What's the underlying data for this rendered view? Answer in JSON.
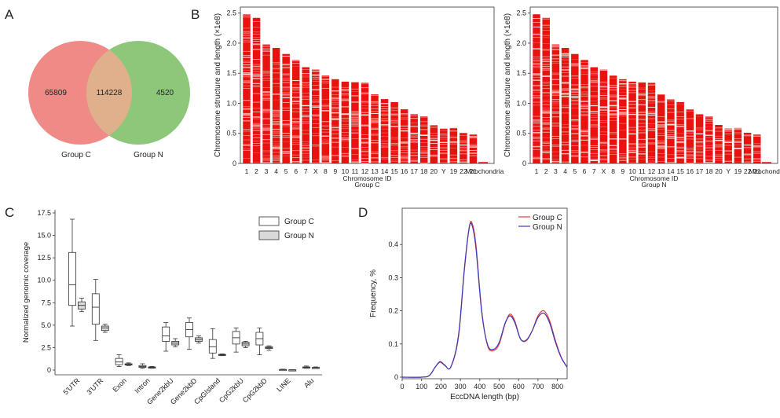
{
  "panels": {
    "A": {
      "letter": "A"
    },
    "B": {
      "letter": "B"
    },
    "C": {
      "letter": "C"
    },
    "D": {
      "letter": "D"
    }
  },
  "colors": {
    "groupC_venn": "#f08a86",
    "groupN_venn": "#8cc77a",
    "overlap_venn": "#dfb08b",
    "chromosome_red": "#e8130e",
    "line_groupC": "#e83a3a",
    "line_groupN": "#3a3ab8",
    "box_groupN_fill": "#d9d9d9"
  },
  "chart_data": [
    {
      "type": "venn",
      "panel": "A",
      "sets": [
        {
          "name": "Group C",
          "only": "65809"
        },
        {
          "name": "Group N",
          "only": "4520"
        }
      ],
      "intersection": "114228"
    },
    {
      "type": "bar",
      "panel": "B",
      "subtitle": "Group C",
      "ylabel": "Chromosome structure and length (×1e8)",
      "xlabel": "Chromosome ID",
      "ylim": [
        0,
        2.6
      ],
      "yticks": [
        "0",
        "0.5",
        "1.0",
        "1.5",
        "2.0",
        "2.5"
      ],
      "categories": [
        "1",
        "2",
        "3",
        "4",
        "5",
        "6",
        "7",
        "X",
        "8",
        "9",
        "10",
        "11",
        "12",
        "13",
        "14",
        "15",
        "16",
        "17",
        "18",
        "20",
        "Y",
        "19",
        "22",
        "21",
        "Mitochondria"
      ],
      "values": [
        2.48,
        2.42,
        1.98,
        1.92,
        1.82,
        1.72,
        1.6,
        1.56,
        1.46,
        1.4,
        1.36,
        1.35,
        1.34,
        1.15,
        1.07,
        1.02,
        0.9,
        0.82,
        0.78,
        0.64,
        0.58,
        0.59,
        0.51,
        0.48,
        0.02
      ]
    },
    {
      "type": "bar",
      "panel": "B",
      "subtitle": "Group N",
      "ylabel": "Chromosome structure and length (×1e8)",
      "xlabel": "Chromosome ID",
      "ylim": [
        0,
        2.6
      ],
      "yticks": [
        "0",
        "0.5",
        "1.0",
        "1.5",
        "2.0",
        "2.5"
      ],
      "categories": [
        "1",
        "2",
        "3",
        "4",
        "5",
        "6",
        "7",
        "X",
        "8",
        "9",
        "10",
        "11",
        "12",
        "13",
        "14",
        "15",
        "16",
        "17",
        "18",
        "20",
        "Y",
        "19",
        "22",
        "21",
        "Mitochondria"
      ],
      "values": [
        2.48,
        2.42,
        1.98,
        1.92,
        1.82,
        1.72,
        1.6,
        1.56,
        1.46,
        1.4,
        1.36,
        1.35,
        1.34,
        1.15,
        1.07,
        1.02,
        0.9,
        0.82,
        0.78,
        0.64,
        0.58,
        0.59,
        0.51,
        0.48,
        0.02
      ]
    },
    {
      "type": "boxplot",
      "panel": "C",
      "ylabel": "Normalized genomic coverage",
      "ylim": [
        0,
        17.5
      ],
      "yticks": [
        "0",
        "2.5",
        "5.0",
        "7.5",
        "10.0",
        "12.5",
        "15.0",
        "17.5"
      ],
      "categories": [
        "5'UTR",
        "3'UTR",
        "Exon",
        "Intron",
        "Gene2kbU",
        "Gene2kbD",
        "CpGIsland",
        "CpG2kbU",
        "CpG2kbD",
        "LINE",
        "Alu"
      ],
      "legend": [
        "Group C",
        "Group N"
      ],
      "series": [
        {
          "name": "Group C",
          "boxes": [
            [
              4.9,
              7.2,
              9.5,
              13.1,
              16.8
            ],
            [
              3.3,
              5.1,
              7.0,
              8.5,
              10.1
            ],
            [
              0.4,
              0.6,
              0.9,
              1.3,
              1.7
            ],
            [
              0.2,
              0.3,
              0.4,
              0.5,
              0.7
            ],
            [
              2.1,
              3.2,
              3.8,
              4.8,
              5.3
            ],
            [
              2.3,
              3.7,
              4.5,
              5.3,
              5.8
            ],
            [
              1.3,
              1.9,
              2.6,
              3.4,
              4.6
            ],
            [
              2.0,
              2.9,
              3.6,
              4.3,
              4.7
            ],
            [
              1.7,
              2.8,
              3.5,
              4.2,
              4.7
            ],
            [
              0.0,
              0.02,
              0.05,
              0.07,
              0.1
            ],
            [
              0.2,
              0.25,
              0.3,
              0.35,
              0.45
            ]
          ]
        },
        {
          "name": "Group N",
          "boxes": [
            [
              6.5,
              6.8,
              7.2,
              7.6,
              8.0
            ],
            [
              4.2,
              4.4,
              4.7,
              4.9,
              5.1
            ],
            [
              0.5,
              0.6,
              0.65,
              0.7,
              0.8
            ],
            [
              0.2,
              0.25,
              0.3,
              0.35,
              0.4
            ],
            [
              2.6,
              2.8,
              3.0,
              3.2,
              3.5
            ],
            [
              3.0,
              3.2,
              3.4,
              3.6,
              3.8
            ],
            [
              1.6,
              1.65,
              1.7,
              1.75,
              1.8
            ],
            [
              2.5,
              2.7,
              2.9,
              3.1,
              3.2
            ],
            [
              2.2,
              2.4,
              2.5,
              2.6,
              2.7
            ],
            [
              0.0,
              0.01,
              0.02,
              0.03,
              0.04
            ],
            [
              0.2,
              0.24,
              0.27,
              0.3,
              0.35
            ]
          ]
        }
      ]
    },
    {
      "type": "line",
      "panel": "D",
      "xlabel": "EccDNA length (bp)",
      "ylabel": "Frequency, %",
      "xlim": [
        0,
        850
      ],
      "ylim": [
        0,
        0.5
      ],
      "xticks": [
        "0",
        "100",
        "200",
        "300",
        "400",
        "500",
        "600",
        "700",
        "800"
      ],
      "yticks": [
        "0",
        "0.1",
        "0.2",
        "0.3",
        "0.4"
      ],
      "legend": [
        "Group C",
        "Group N"
      ],
      "series": [
        {
          "name": "Group C",
          "x": [
            0,
            100,
            140,
            170,
            195,
            220,
            250,
            290,
            320,
            345,
            360,
            380,
            410,
            440,
            470,
            500,
            530,
            555,
            580,
            610,
            640,
            670,
            700,
            730,
            760,
            790,
            820,
            850
          ],
          "y": [
            0,
            0,
            0.005,
            0.03,
            0.045,
            0.035,
            0.03,
            0.12,
            0.32,
            0.45,
            0.465,
            0.4,
            0.2,
            0.095,
            0.08,
            0.1,
            0.16,
            0.19,
            0.17,
            0.115,
            0.11,
            0.14,
            0.185,
            0.2,
            0.17,
            0.11,
            0.06,
            0.03
          ]
        },
        {
          "name": "Group N",
          "x": [
            0,
            100,
            140,
            170,
            195,
            220,
            250,
            290,
            320,
            345,
            360,
            380,
            410,
            440,
            470,
            500,
            530,
            555,
            580,
            610,
            640,
            670,
            700,
            730,
            760,
            790,
            820,
            850
          ],
          "y": [
            0,
            0,
            0.005,
            0.03,
            0.047,
            0.036,
            0.03,
            0.125,
            0.325,
            0.448,
            0.458,
            0.39,
            0.195,
            0.098,
            0.084,
            0.105,
            0.162,
            0.185,
            0.165,
            0.115,
            0.112,
            0.14,
            0.18,
            0.193,
            0.163,
            0.105,
            0.058,
            0.03
          ]
        }
      ]
    }
  ]
}
